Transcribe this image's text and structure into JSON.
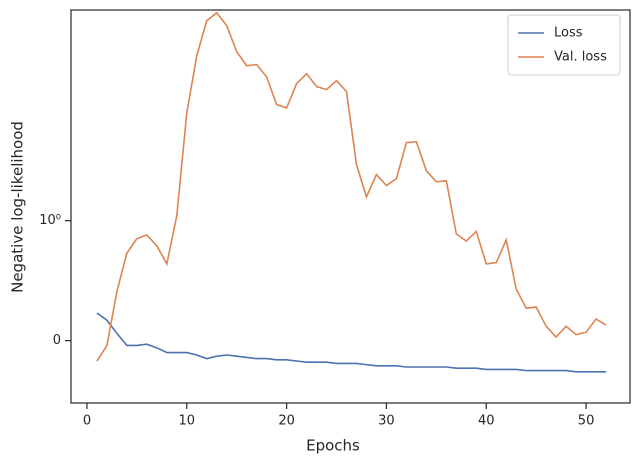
{
  "chart_data": {
    "type": "line",
    "xlabel": "Epochs",
    "ylabel": "Negative log-likelihood",
    "x": [
      1,
      2,
      3,
      4,
      5,
      6,
      7,
      8,
      9,
      10,
      11,
      12,
      13,
      14,
      15,
      16,
      17,
      18,
      19,
      20,
      21,
      22,
      23,
      24,
      25,
      26,
      27,
      28,
      29,
      30,
      31,
      32,
      33,
      34,
      35,
      36,
      37,
      38,
      39,
      40,
      41,
      42,
      43,
      44,
      45,
      46,
      47,
      48,
      49,
      50,
      51,
      52
    ],
    "series": [
      {
        "name": "Loss",
        "color": "#4c72b0",
        "values": [
          0.23,
          0.17,
          0.06,
          -0.04,
          -0.04,
          -0.03,
          -0.06,
          -0.1,
          -0.1,
          -0.1,
          -0.12,
          -0.15,
          -0.13,
          -0.12,
          -0.13,
          -0.14,
          -0.15,
          -0.15,
          -0.16,
          -0.16,
          -0.17,
          -0.18,
          -0.18,
          -0.18,
          -0.19,
          -0.19,
          -0.19,
          -0.2,
          -0.21,
          -0.21,
          -0.21,
          -0.22,
          -0.22,
          -0.22,
          -0.22,
          -0.22,
          -0.23,
          -0.23,
          -0.23,
          -0.24,
          -0.24,
          -0.24,
          -0.24,
          -0.25,
          -0.25,
          -0.25,
          -0.25,
          -0.25,
          -0.26,
          -0.26,
          -0.26,
          -0.26
        ]
      },
      {
        "name": "Val. loss",
        "color": "#dd8452",
        "values": [
          -0.17,
          -0.04,
          0.41,
          0.73,
          0.85,
          0.88,
          0.79,
          0.64,
          1.1,
          7.9,
          23.7,
          46.4,
          54.1,
          42.2,
          25.6,
          19.6,
          20,
          15.8,
          9.3,
          8.7,
          13.9,
          16.8,
          13.1,
          12.4,
          14.7,
          11.9,
          2.93,
          1.58,
          2.42,
          1.96,
          2.24,
          4.47,
          4.55,
          2.61,
          2.11,
          2.15,
          0.89,
          0.83,
          0.91,
          0.64,
          0.65,
          0.84,
          0.43,
          0.27,
          0.28,
          0.12,
          0.03,
          0.12,
          0.05,
          0.07,
          0.18,
          0.13
        ]
      }
    ],
    "xlim": [
      -1.6,
      54.4
    ],
    "xticks": [
      0,
      10,
      20,
      30,
      40,
      50
    ],
    "ylim": [
      -0.52,
      57
    ],
    "yticks": [
      0,
      {
        "value": 1,
        "label": "10⁰"
      }
    ],
    "yscale": "symlog",
    "linthresh": 1,
    "grid": false,
    "legend": "upper right"
  }
}
